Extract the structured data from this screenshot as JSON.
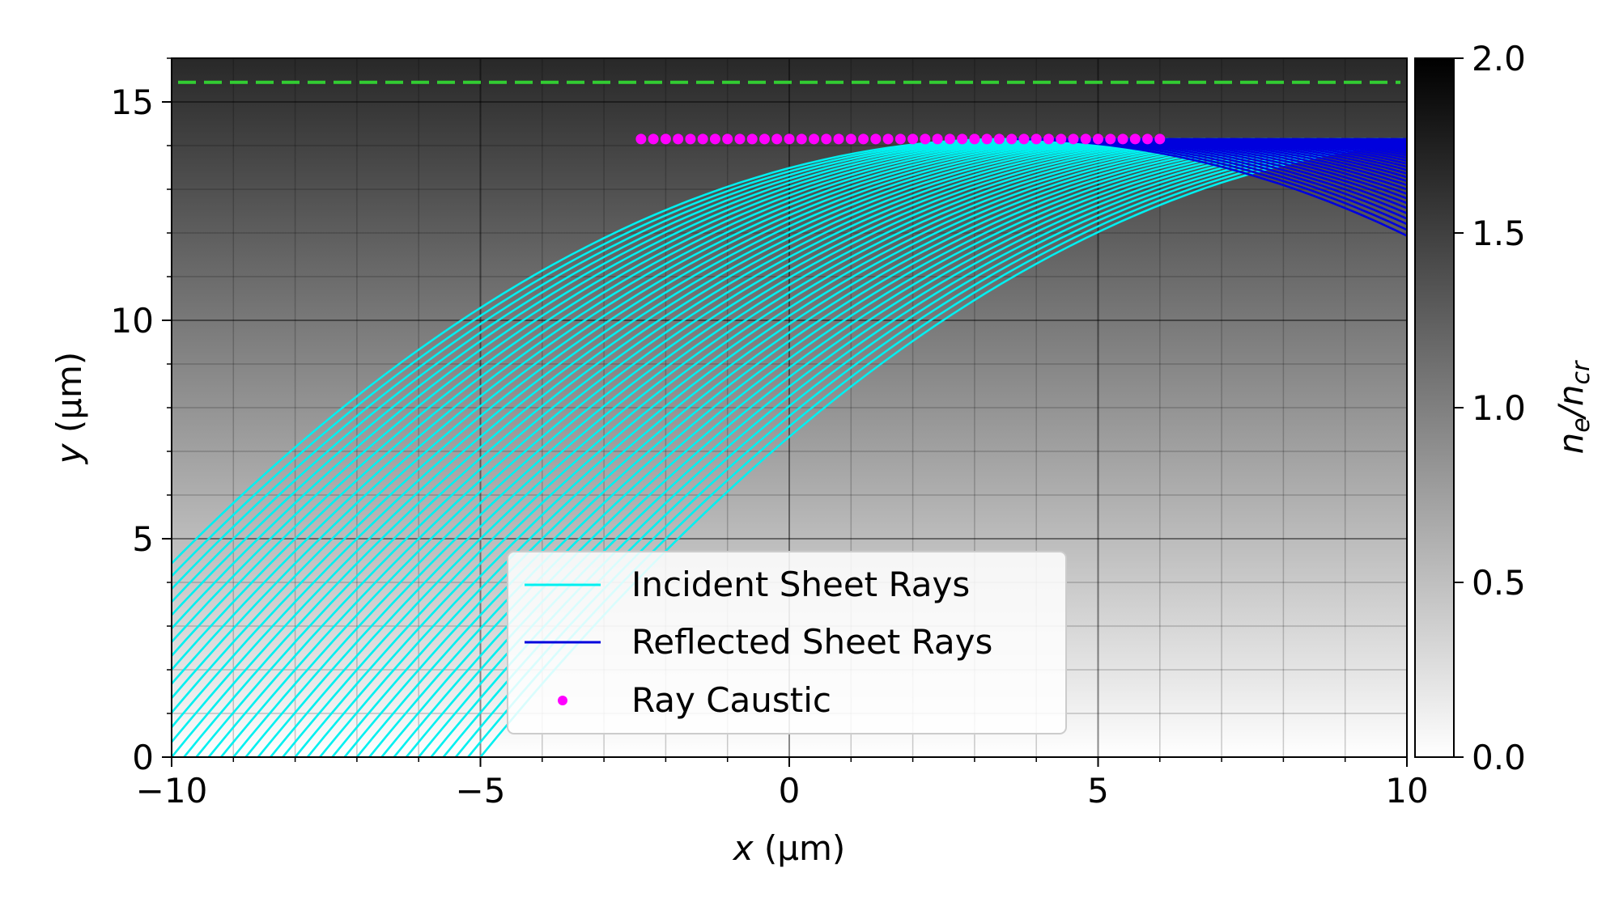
{
  "chart_data": {
    "type": "line",
    "xlabel_var": "x",
    "xlabel_unit": "(μm)",
    "ylabel_var": "y",
    "ylabel_unit": "(μm)",
    "xlim": [
      -10,
      10
    ],
    "ylim": [
      0,
      16
    ],
    "xticks": [
      -10,
      -5,
      0,
      5,
      10
    ],
    "xtick_labels": [
      "−10",
      "−5",
      "0",
      "5",
      "10"
    ],
    "yticks": [
      0,
      5,
      10,
      15
    ],
    "ytick_labels": [
      "0",
      "5",
      "10",
      "15"
    ],
    "grid": true,
    "colorbar": {
      "label_base": "n",
      "label_sub1": "e",
      "label_sep": "/n",
      "label_sub2": "cr",
      "range": [
        0,
        2
      ],
      "ticks": [
        "0.0",
        "0.5",
        "1.0",
        "1.5",
        "2.0"
      ],
      "colormap": "gray_r"
    },
    "background_density": {
      "equation": "n_e/n_cr = 2*y/16",
      "max_value": 2
    },
    "critical_line": {
      "y": 15.45,
      "color": "#32cd32",
      "style": "dashed"
    },
    "ray_family": {
      "count": 40,
      "launch_x_start": -12.8,
      "launch_x_step": 0.2,
      "launch_angle_deg": 30,
      "turning_y": 14.15
    },
    "series": [
      {
        "name": "Incident Sheet Rays",
        "color": "#00f0f0",
        "kind": "line"
      },
      {
        "name": "Reflected Sheet Rays",
        "color": "#0000dd",
        "kind": "line"
      },
      {
        "name": "Ray Caustic",
        "color": "#ff00ff",
        "kind": "points",
        "x_start": -2.4,
        "x_end": 6.0,
        "step": 0.2,
        "y": 14.15
      }
    ],
    "legend_location": "lower-center"
  }
}
